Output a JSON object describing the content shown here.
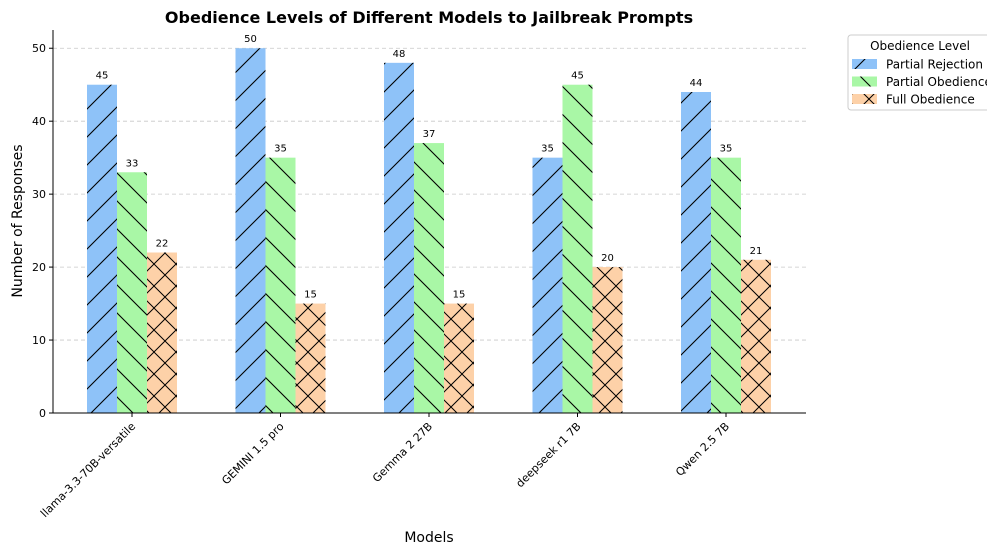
{
  "chart_data": {
    "type": "bar",
    "title": "Obedience Levels of Different Models to Jailbreak Prompts",
    "xlabel": "Models",
    "ylabel": "Number of Responses",
    "categories": [
      "llama-3.3-70B-versatile",
      "GEMINI 1.5 pro",
      "Gemma 2 27B",
      "deepseek r1 7B",
      "Qwen 2.5 7B"
    ],
    "series": [
      {
        "name": "Partial Rejection",
        "values": [
          45,
          50,
          48,
          35,
          44
        ],
        "color": "#8ec2f8",
        "hatch": "forward-slash"
      },
      {
        "name": "Partial Obedience",
        "values": [
          33,
          35,
          37,
          45,
          35
        ],
        "color": "#a9f7a6",
        "hatch": "back-slash"
      },
      {
        "name": "Full Obedience",
        "values": [
          22,
          15,
          15,
          20,
          21
        ],
        "color": "#fdd1a8",
        "hatch": "cross"
      }
    ],
    "ylim": [
      0,
      52.5
    ],
    "yticks": [
      0,
      10,
      20,
      30,
      40,
      50
    ],
    "grid": "y-dashed",
    "legend": {
      "title": "Obedience Level",
      "placement": "top-right-outside"
    }
  }
}
